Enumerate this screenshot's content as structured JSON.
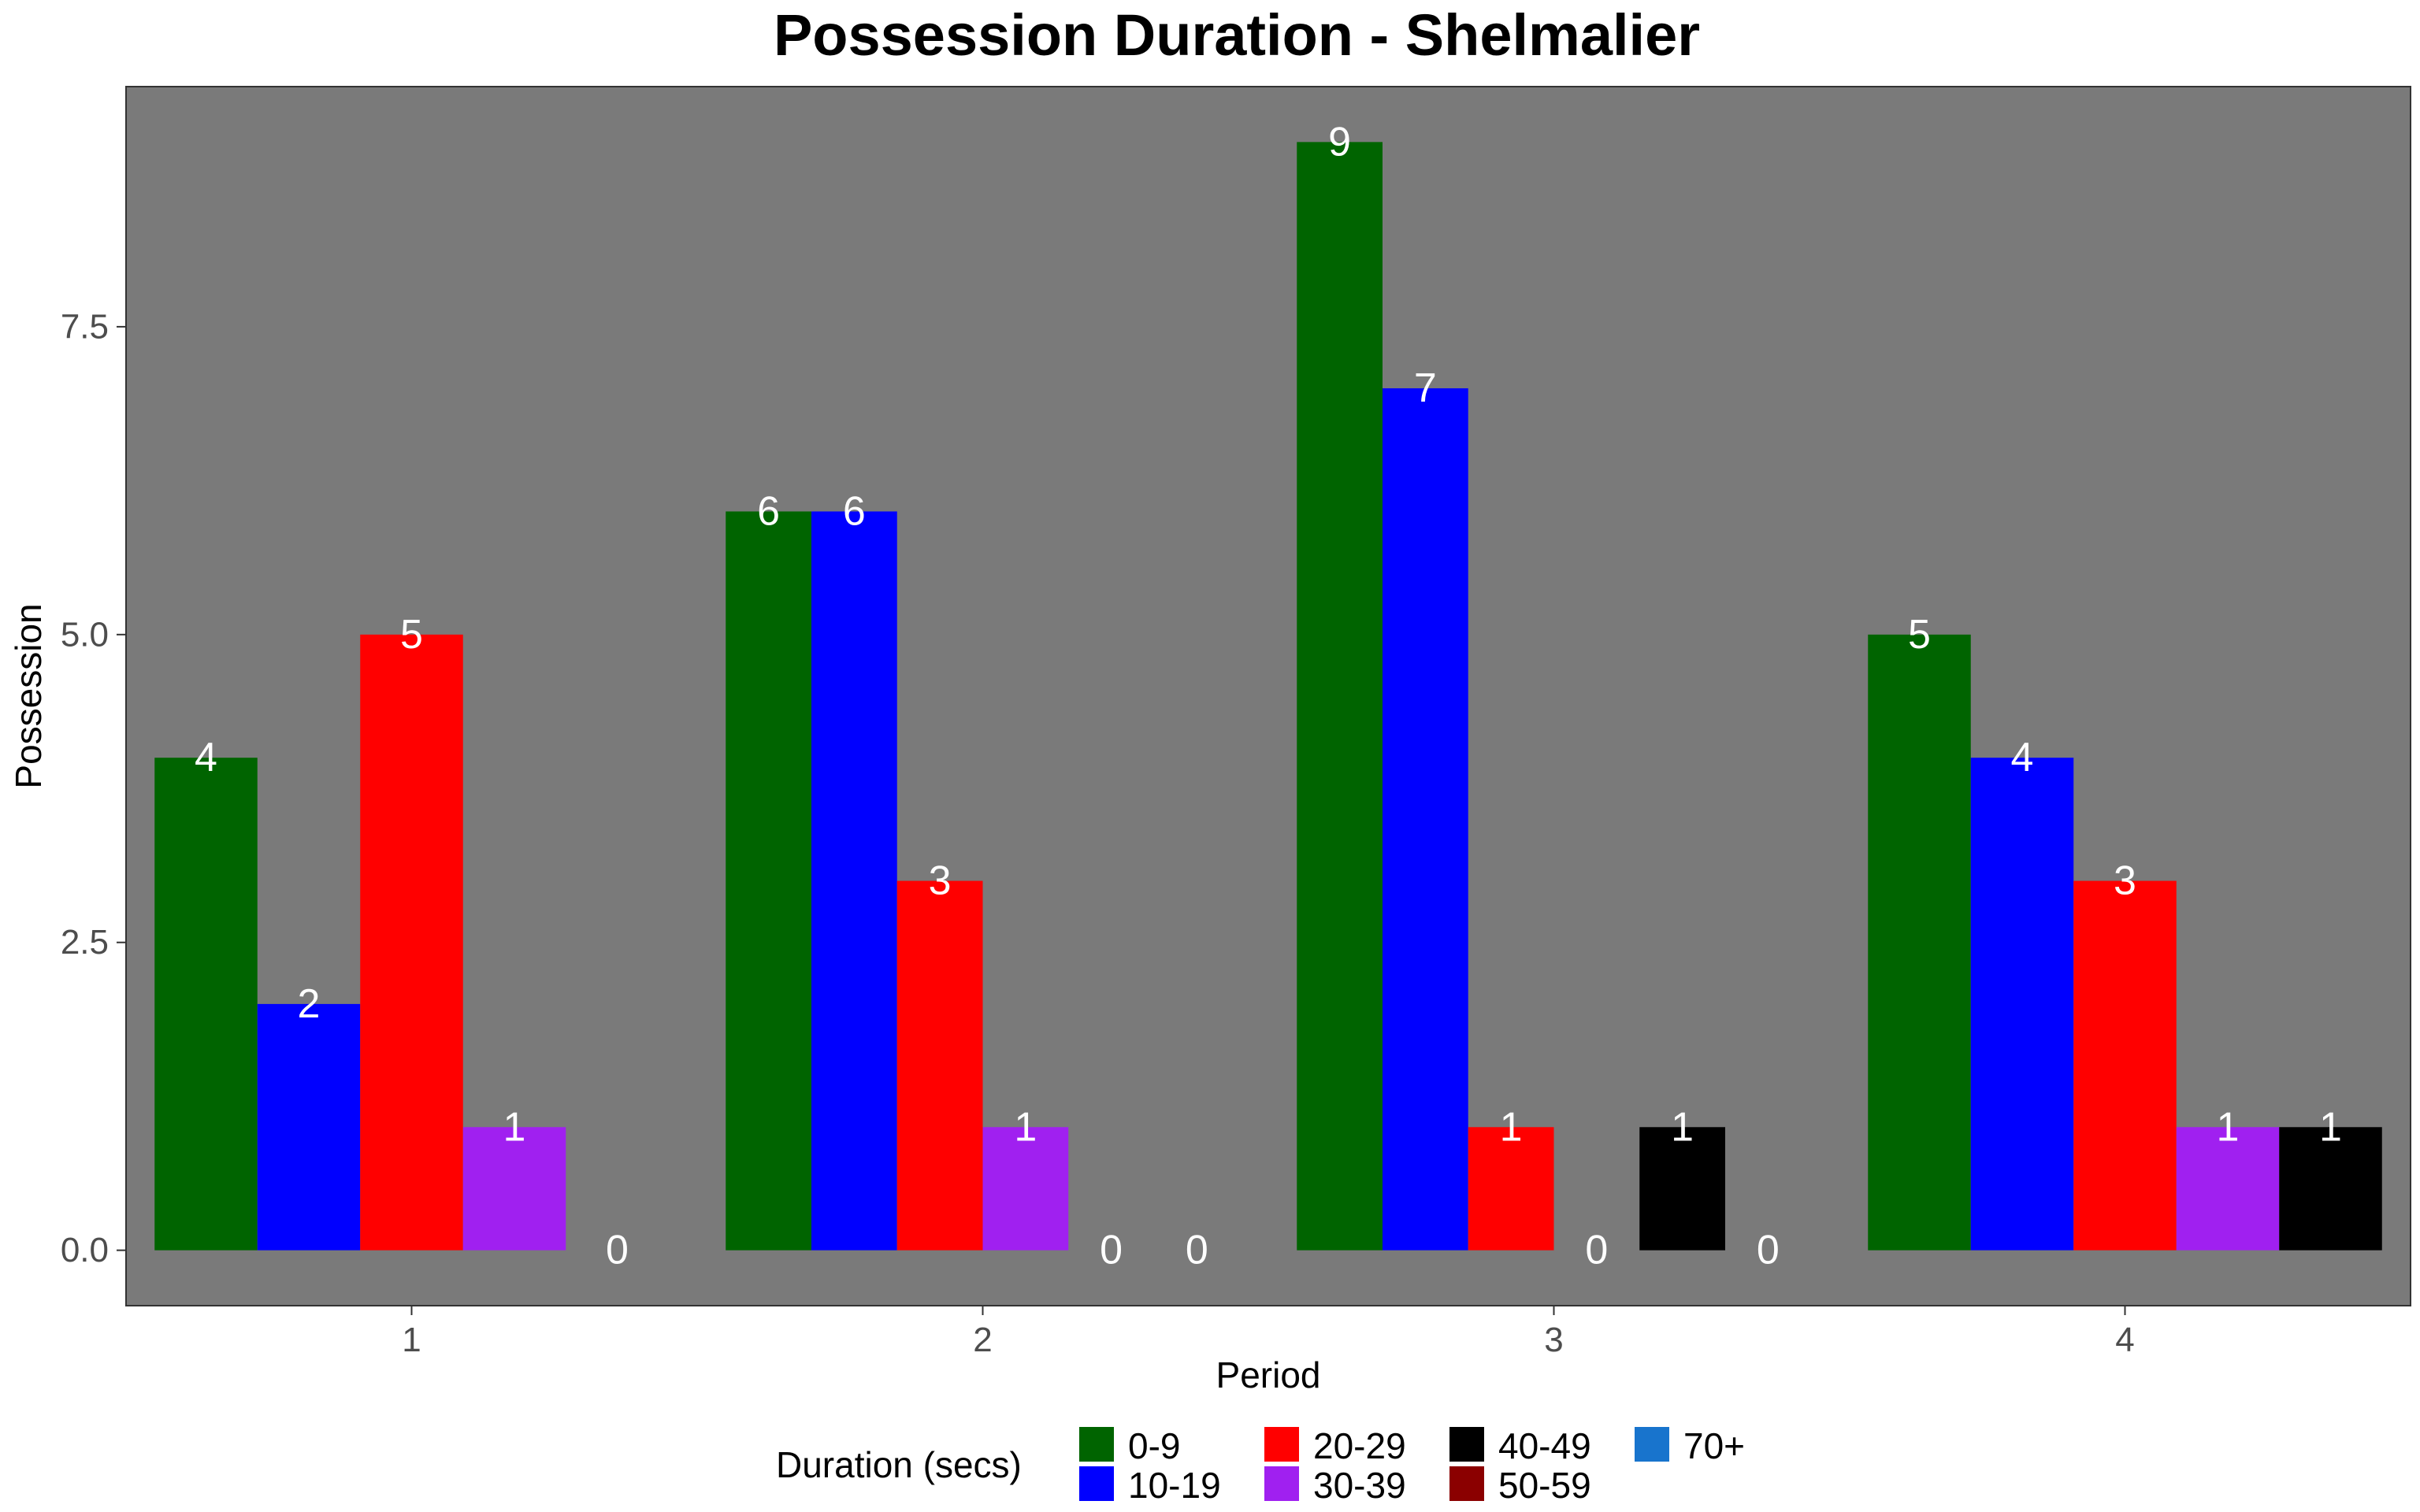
{
  "chart_data": {
    "type": "bar",
    "title": "Possession Duration - Shelmalier",
    "xlabel": "Period",
    "ylabel": "Possession",
    "categories": [
      "1",
      "2",
      "3",
      "4"
    ],
    "ylim": [
      -0.45,
      9.45
    ],
    "yticks": [
      "0.0",
      "2.5",
      "5.0",
      "7.5"
    ],
    "ytick_values": [
      0,
      2.5,
      5,
      7.5
    ],
    "panel_background": "#7a7a7a",
    "grid": false,
    "legend": {
      "title": "Duration (secs)",
      "position": "bottom",
      "entries": [
        {
          "label": "0-9",
          "color": "#006400"
        },
        {
          "label": "10-19",
          "color": "#0000ff"
        },
        {
          "label": "20-29",
          "color": "#ff0000"
        },
        {
          "label": "30-39",
          "color": "#a020f0"
        },
        {
          "label": "40-49",
          "color": "#000000"
        },
        {
          "label": "50-59",
          "color": "#8b0000"
        },
        {
          "label": "70+",
          "color": "#1874cd"
        }
      ]
    },
    "groups": [
      {
        "period": "1",
        "bars": [
          {
            "series": "0-9",
            "value": 4,
            "label": "4"
          },
          {
            "series": "10-19",
            "value": 2,
            "label": "2"
          },
          {
            "series": "20-29",
            "value": 5,
            "label": "5"
          },
          {
            "series": "30-39",
            "value": 1,
            "label": "1"
          },
          {
            "series": "40-49",
            "value": 0,
            "label": "0"
          }
        ]
      },
      {
        "period": "2",
        "bars": [
          {
            "series": "0-9",
            "value": 6,
            "label": "6"
          },
          {
            "series": "10-19",
            "value": 6,
            "label": "6"
          },
          {
            "series": "20-29",
            "value": 3,
            "label": "3"
          },
          {
            "series": "30-39",
            "value": 1,
            "label": "1"
          },
          {
            "series": "40-49",
            "value": 0,
            "label": "0"
          },
          {
            "series": "50-59",
            "value": 0,
            "label": "0"
          }
        ]
      },
      {
        "period": "3",
        "bars": [
          {
            "series": "0-9",
            "value": 9,
            "label": "9"
          },
          {
            "series": "10-19",
            "value": 7,
            "label": "7"
          },
          {
            "series": "20-29",
            "value": 1,
            "label": "1"
          },
          {
            "series": "30-39",
            "value": 0,
            "label": "0"
          },
          {
            "series": "40-49",
            "value": 1,
            "label": "1"
          },
          {
            "series": "70+",
            "value": 0,
            "label": "0"
          }
        ]
      },
      {
        "period": "4",
        "bars": [
          {
            "series": "0-9",
            "value": 5,
            "label": "5"
          },
          {
            "series": "10-19",
            "value": 4,
            "label": "4"
          },
          {
            "series": "20-29",
            "value": 3,
            "label": "3"
          },
          {
            "series": "30-39",
            "value": 1,
            "label": "1"
          },
          {
            "series": "40-49",
            "value": 1,
            "label": "1"
          }
        ]
      }
    ]
  }
}
